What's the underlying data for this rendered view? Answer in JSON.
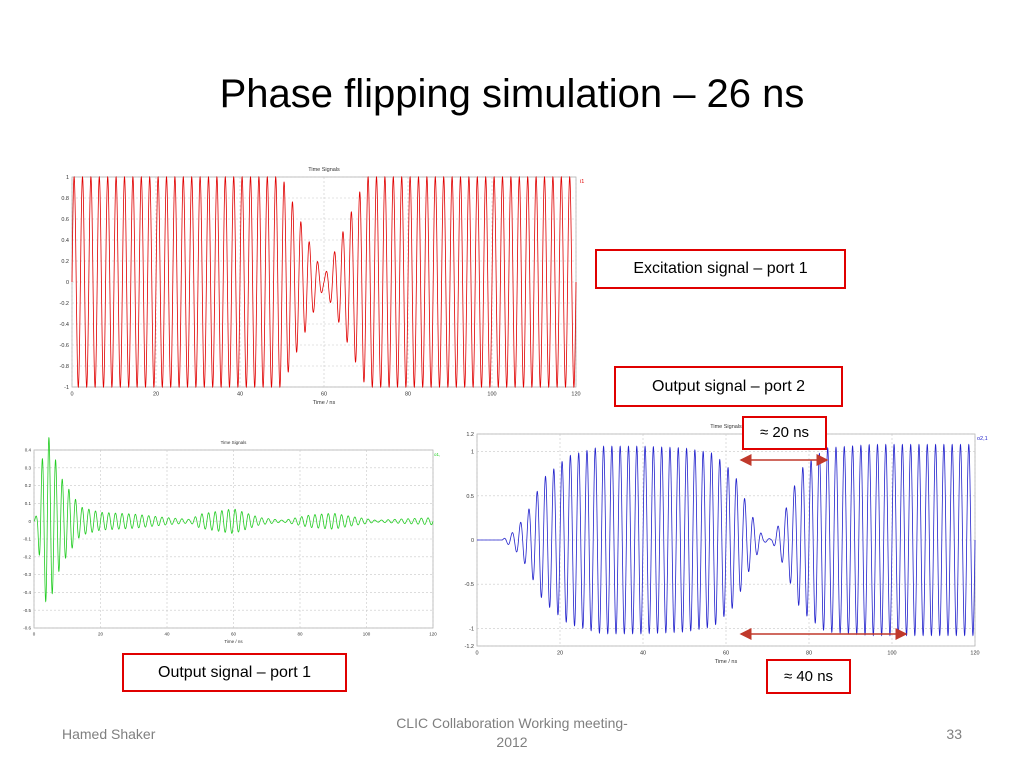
{
  "slide": {
    "title": "Phase flipping simulation – 26 ns",
    "footer_left": "Hamed Shaker",
    "footer_center": "CLIC Collaboration Working meeting-\n2012",
    "footer_right": "33"
  },
  "callouts": {
    "excitation": "Excitation signal – port 1",
    "output2": "Output signal – port 2",
    "output1": "Output signal – port 1",
    "span20": "≈ 20 ns",
    "span40": "≈ 40 ns"
  },
  "colors": {
    "red": "#e00000",
    "green": "#22cc22",
    "blue": "#2222cc",
    "arrow": "#c0392b",
    "callout_border": "#e00000"
  },
  "chart_data": [
    {
      "id": "excitation",
      "type": "line",
      "title": "Time Signals",
      "xlabel": "Time / ns",
      "ylabel": "",
      "xlim": [
        0,
        120
      ],
      "ylim": [
        -1,
        1
      ],
      "xticks": [
        0,
        20,
        40,
        60,
        80,
        100,
        120
      ],
      "yticks": [
        -1,
        -0.8,
        -0.6,
        -0.4,
        -0.2,
        0,
        0.2,
        0.4,
        0.6,
        0.8,
        1
      ],
      "grid": true,
      "color": "#e00000",
      "series": [
        {
          "name": "i1",
          "carrier_period_ns": 2,
          "envelope": [
            [
              0,
              1
            ],
            [
              50,
              1
            ],
            [
              60,
              0.05
            ],
            [
              70,
              1
            ],
            [
              120,
              1
            ]
          ]
        }
      ]
    },
    {
      "id": "output1",
      "type": "line",
      "title": "Time Signals",
      "xlabel": "Time / ns",
      "ylabel": "",
      "xlim": [
        0,
        120
      ],
      "ylim": [
        -0.6,
        0.4
      ],
      "xticks": [
        0,
        20,
        40,
        60,
        80,
        100,
        120
      ],
      "yticks": [
        -0.6,
        -0.5,
        -0.4,
        -0.3,
        -0.2,
        -0.1,
        0,
        0.1,
        0.2,
        0.3,
        0.4
      ],
      "grid": true,
      "color": "#22cc22",
      "series": [
        {
          "name": "o1,1",
          "carrier_period_ns": 2,
          "envelope": [
            [
              0,
              0
            ],
            [
              1,
              0.05
            ],
            [
              2,
              0.3
            ],
            [
              4,
              0.5
            ],
            [
              8,
              0.25
            ],
            [
              14,
              0.08
            ],
            [
              20,
              0.05
            ],
            [
              30,
              0.04
            ],
            [
              40,
              0.02
            ],
            [
              47,
              0.01
            ],
            [
              50,
              0.04
            ],
            [
              60,
              0.07
            ],
            [
              68,
              0.02
            ],
            [
              75,
              0.005
            ],
            [
              83,
              0.035
            ],
            [
              90,
              0.045
            ],
            [
              96,
              0.025
            ],
            [
              103,
              0.005
            ],
            [
              110,
              0.012
            ],
            [
              120,
              0.02
            ]
          ]
        }
      ]
    },
    {
      "id": "output2",
      "type": "line",
      "title": "Time Signals",
      "xlabel": "Time / ns",
      "ylabel": "",
      "xlim": [
        0,
        120
      ],
      "ylim": [
        -1.2,
        1.2
      ],
      "xticks": [
        0,
        20,
        40,
        60,
        80,
        100,
        120
      ],
      "yticks": [
        -1.2,
        -1,
        -0.5,
        0,
        0.5,
        1,
        1.2
      ],
      "grid": true,
      "color": "#2222cc",
      "series": [
        {
          "name": "o2,1",
          "carrier_period_ns": 2,
          "envelope": [
            [
              0,
              0
            ],
            [
              6,
              0
            ],
            [
              9,
              0.1
            ],
            [
              12,
              0.3
            ],
            [
              16,
              0.7
            ],
            [
              22,
              0.95
            ],
            [
              30,
              1.06
            ],
            [
              40,
              1.06
            ],
            [
              50,
              1.04
            ],
            [
              57,
              0.98
            ],
            [
              62,
              0.75
            ],
            [
              66,
              0.3
            ],
            [
              69,
              0.03
            ],
            [
              71,
              0.01
            ],
            [
              74,
              0.3
            ],
            [
              78,
              0.8
            ],
            [
              84,
              1.04
            ],
            [
              95,
              1.08
            ],
            [
              120,
              1.08
            ]
          ]
        }
      ]
    }
  ]
}
